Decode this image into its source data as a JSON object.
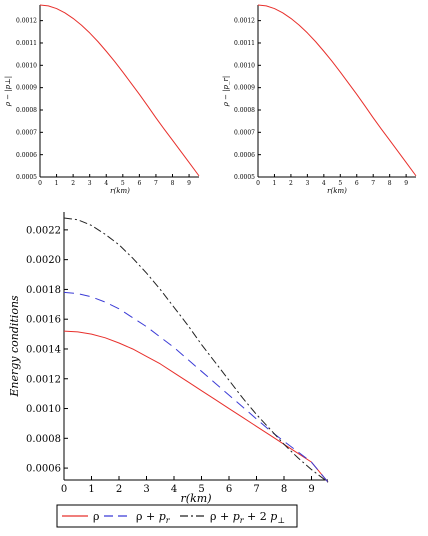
{
  "chart_data": [
    {
      "type": "line",
      "xlabel": "r(km)",
      "ylabel": "ρ − |p⊥|",
      "xlim": [
        0,
        9.6
      ],
      "ylim": [
        0.0005,
        0.00127
      ],
      "xticks": [
        0,
        1,
        2,
        3,
        4,
        5,
        6,
        7,
        8,
        9
      ],
      "yticks": [
        0.0005,
        0.0006,
        0.0007,
        0.0008,
        0.0009,
        0.001,
        0.0011,
        0.0012
      ],
      "ytick_labels": [
        "0.0005",
        "0.0006",
        "0.0007",
        "0.0008",
        "0.0009",
        "0.0010",
        "0.0011",
        "0.0012"
      ],
      "series": [
        {
          "color": "#e8302c",
          "x": [
            0,
            0.5,
            1,
            1.5,
            2,
            2.5,
            3,
            3.5,
            4,
            4.5,
            5,
            5.5,
            6,
            6.5,
            7,
            7.5,
            8,
            8.5,
            9,
            9.6
          ],
          "y": [
            0.00127,
            0.001266,
            0.001254,
            0.001235,
            0.00121,
            0.00118,
            0.001145,
            0.001106,
            0.001063,
            0.001018,
            0.00097,
            0.00092,
            0.00087,
            0.000818,
            0.000765,
            0.000714,
            0.000665,
            0.000615,
            0.000565,
            0.000505
          ]
        }
      ]
    },
    {
      "type": "line",
      "xlabel": "r(km)",
      "ylabel": "ρ − |p_r|",
      "xlim": [
        0,
        9.6
      ],
      "ylim": [
        0.0005,
        0.00127
      ],
      "xticks": [
        0,
        1,
        2,
        3,
        4,
        5,
        6,
        7,
        8,
        9
      ],
      "yticks": [
        0.0005,
        0.0006,
        0.0007,
        0.0008,
        0.0009,
        0.001,
        0.0011,
        0.0012
      ],
      "ytick_labels": [
        "0.0005",
        "0.0006",
        "0.0007",
        "0.0008",
        "0.0009",
        "0.0010",
        "0.0011",
        "0.0012"
      ],
      "series": [
        {
          "color": "#e8302c",
          "x": [
            0,
            0.5,
            1,
            1.5,
            2,
            2.5,
            3,
            3.5,
            4,
            4.5,
            5,
            5.5,
            6,
            6.5,
            7,
            7.5,
            8,
            8.5,
            9,
            9.6
          ],
          "y": [
            0.00127,
            0.001266,
            0.001254,
            0.001235,
            0.00121,
            0.00118,
            0.001145,
            0.001106,
            0.001063,
            0.001018,
            0.00097,
            0.00092,
            0.00087,
            0.000818,
            0.000765,
            0.000714,
            0.000665,
            0.000615,
            0.000565,
            0.000505
          ]
        }
      ]
    },
    {
      "type": "line",
      "xlabel": "r(km)",
      "ylabel": "Energy conditions",
      "xlim": [
        0,
        9.6
      ],
      "ylim": [
        0.00052,
        0.00232
      ],
      "xticks": [
        0,
        1,
        2,
        3,
        4,
        5,
        6,
        7,
        8,
        9
      ],
      "yticks": [
        0.0006,
        0.0008,
        0.001,
        0.0012,
        0.0014,
        0.0016,
        0.0018,
        0.002,
        0.0022
      ],
      "ytick_labels": [
        "0.0006",
        "0.0008",
        "0.0010",
        "0.0012",
        "0.0014",
        "0.0016",
        "0.0018",
        "0.0020",
        "0.0022"
      ],
      "legend": "bottom",
      "series": [
        {
          "name": "ρ",
          "color": "#e8302c",
          "dash": "solid",
          "x": [
            0,
            0.5,
            1,
            1.5,
            2,
            2.5,
            3,
            3.5,
            4,
            4.5,
            5,
            5.5,
            6,
            6.5,
            7,
            7.5,
            8,
            8.5,
            9,
            9.6
          ],
          "y": [
            0.00152,
            0.001515,
            0.0015,
            0.001475,
            0.00144,
            0.0014,
            0.00135,
            0.0013,
            0.00124,
            0.00118,
            0.00112,
            0.00106,
            0.001,
            0.00094,
            0.00088,
            0.00082,
            0.00076,
            0.0007,
            0.00064,
            0.000505
          ]
        },
        {
          "name": "ρ + p_r",
          "color": "#3b3bd6",
          "dash": "long",
          "x": [
            0,
            0.5,
            1,
            1.5,
            2,
            2.5,
            3,
            3.5,
            4,
            4.5,
            5,
            5.5,
            6,
            6.5,
            7,
            7.5,
            8,
            8.5,
            9,
            9.6
          ],
          "y": [
            0.00178,
            0.001772,
            0.00175,
            0.001715,
            0.00167,
            0.00161,
            0.00155,
            0.00148,
            0.00141,
            0.00133,
            0.00125,
            0.00117,
            0.00109,
            0.00101,
            0.00093,
            0.00085,
            0.00078,
            0.00071,
            0.00064,
            0.000505
          ]
        },
        {
          "name": "ρ + p_r + 2 p⊥",
          "color": "#222222",
          "dash": "dashdot",
          "x": [
            0,
            0.5,
            1,
            1.5,
            2,
            2.5,
            3,
            3.5,
            4,
            4.5,
            5,
            5.5,
            6,
            6.5,
            7,
            7.5,
            8,
            8.5,
            9,
            9.6
          ],
          "y": [
            0.00228,
            0.002268,
            0.00223,
            0.00217,
            0.0021,
            0.00201,
            0.00191,
            0.0018,
            0.00168,
            0.00156,
            0.00143,
            0.00131,
            0.00119,
            0.00107,
            0.00096,
            0.00086,
            0.00076,
            0.00067,
            0.00059,
            0.000505
          ]
        }
      ]
    }
  ]
}
